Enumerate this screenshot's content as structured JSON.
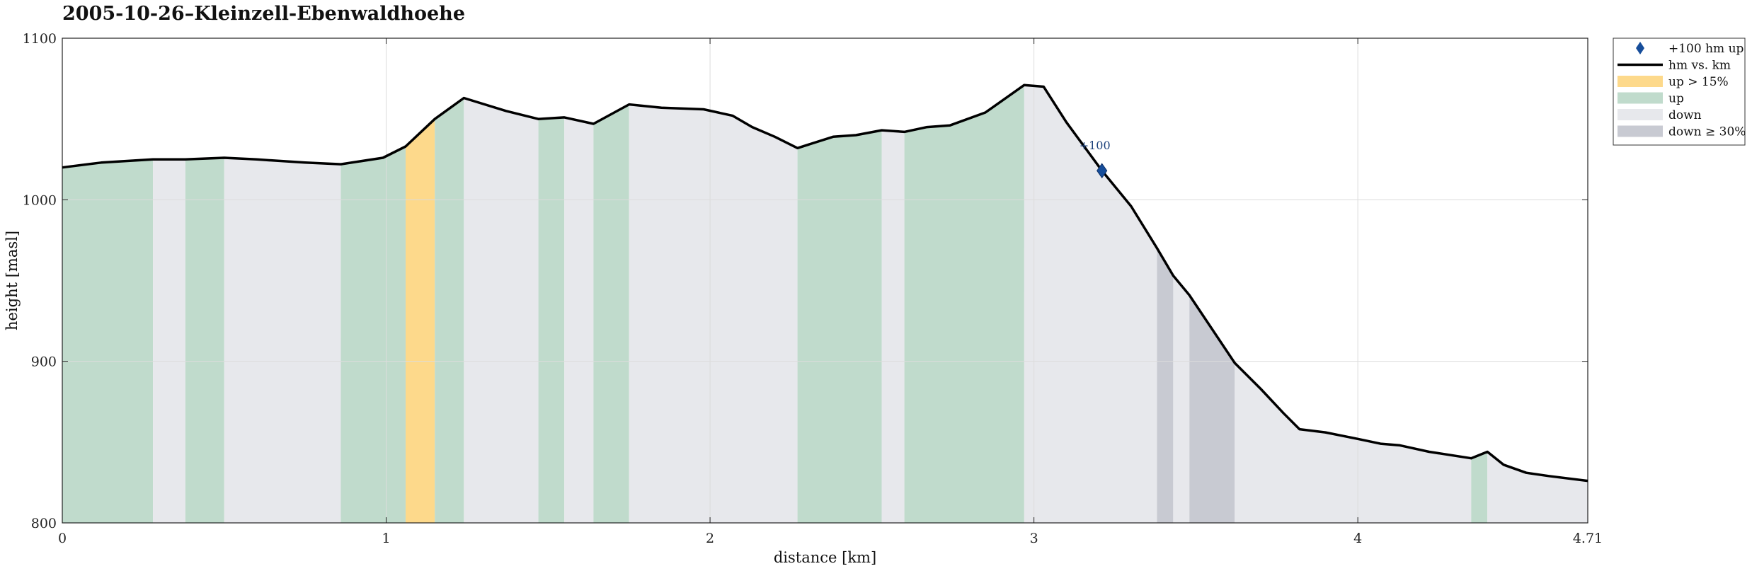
{
  "chart_data": {
    "type": "area",
    "title": "2005-10-26–Kleinzell-Ebenwaldhoehe",
    "xlabel": "distance [km]",
    "ylabel": "height [masl]",
    "xlim": [
      0,
      4.71
    ],
    "ylim": [
      800,
      1100
    ],
    "xticks": [
      "0",
      "1",
      "2",
      "3",
      "4",
      "4.71"
    ],
    "yticks": [
      "800",
      "900",
      "1000",
      "1100"
    ],
    "grid": true,
    "legend_position": "outside-right-top",
    "profile": {
      "x": [
        0,
        0.12,
        0.28,
        0.38,
        0.5,
        0.6,
        0.75,
        0.86,
        0.99,
        1.06,
        1.15,
        1.24,
        1.37,
        1.47,
        1.55,
        1.64,
        1.75,
        1.85,
        1.98,
        2.07,
        2.13,
        2.2,
        2.27,
        2.38,
        2.45,
        2.53,
        2.6,
        2.67,
        2.74,
        2.85,
        2.97,
        3.03,
        3.1,
        3.21,
        3.3,
        3.38,
        3.43,
        3.48,
        3.62,
        3.7,
        3.77,
        3.82,
        3.9,
        4.0,
        4.07,
        4.13,
        4.22,
        4.35,
        4.4,
        4.45,
        4.52,
        4.59,
        4.71
      ],
      "y": [
        1020,
        1023,
        1025,
        1025,
        1026,
        1025,
        1023,
        1022,
        1026,
        1033,
        1050,
        1063,
        1055,
        1050,
        1051,
        1047,
        1059,
        1057,
        1056,
        1052,
        1045,
        1039,
        1032,
        1039,
        1040,
        1043,
        1042,
        1045,
        1046,
        1054,
        1071,
        1070,
        1048,
        1018,
        996,
        970,
        953,
        941,
        899,
        883,
        868,
        858,
        856,
        852,
        849,
        848,
        844,
        840,
        844,
        836,
        831,
        829,
        826
      ]
    },
    "segments": [
      {
        "from": 0,
        "to": 0.28,
        "class": "up"
      },
      {
        "from": 0.28,
        "to": 0.38,
        "class": "down"
      },
      {
        "from": 0.38,
        "to": 0.5,
        "class": "up"
      },
      {
        "from": 0.5,
        "to": 0.86,
        "class": "down"
      },
      {
        "from": 0.86,
        "to": 1.06,
        "class": "up"
      },
      {
        "from": 1.06,
        "to": 1.15,
        "class": "up_steep"
      },
      {
        "from": 1.15,
        "to": 1.24,
        "class": "up"
      },
      {
        "from": 1.24,
        "to": 1.47,
        "class": "down"
      },
      {
        "from": 1.47,
        "to": 1.55,
        "class": "up"
      },
      {
        "from": 1.55,
        "to": 1.64,
        "class": "down"
      },
      {
        "from": 1.64,
        "to": 1.75,
        "class": "up"
      },
      {
        "from": 1.75,
        "to": 2.27,
        "class": "down"
      },
      {
        "from": 2.27,
        "to": 2.53,
        "class": "up"
      },
      {
        "from": 2.53,
        "to": 2.6,
        "class": "down"
      },
      {
        "from": 2.6,
        "to": 2.97,
        "class": "up"
      },
      {
        "from": 2.97,
        "to": 3.38,
        "class": "down"
      },
      {
        "from": 3.38,
        "to": 3.43,
        "class": "down_steep"
      },
      {
        "from": 3.43,
        "to": 3.48,
        "class": "down"
      },
      {
        "from": 3.48,
        "to": 3.62,
        "class": "down_steep"
      },
      {
        "from": 3.62,
        "to": 4.35,
        "class": "down"
      },
      {
        "from": 4.35,
        "to": 4.4,
        "class": "up"
      },
      {
        "from": 4.4,
        "to": 4.71,
        "class": "down"
      }
    ],
    "markers": [
      {
        "x": 3.21,
        "y": 1018,
        "label": "+100"
      }
    ],
    "legend": [
      {
        "key": "marker",
        "label": "+100 hm up"
      },
      {
        "key": "line",
        "label": "hm vs. km"
      },
      {
        "key": "up_steep",
        "label": "up > 15%"
      },
      {
        "key": "up",
        "label": "up"
      },
      {
        "key": "down",
        "label": "down"
      },
      {
        "key": "down_steep",
        "label": "down ≥ 30%"
      }
    ],
    "colors": {
      "up_steep": "#fdd98b",
      "up": "#c0dbcc",
      "down": "#e7e8ec",
      "down_steep": "#c8cad2",
      "line": "#000000",
      "marker": "#164d9a",
      "grid": "#dcdcdc"
    }
  }
}
